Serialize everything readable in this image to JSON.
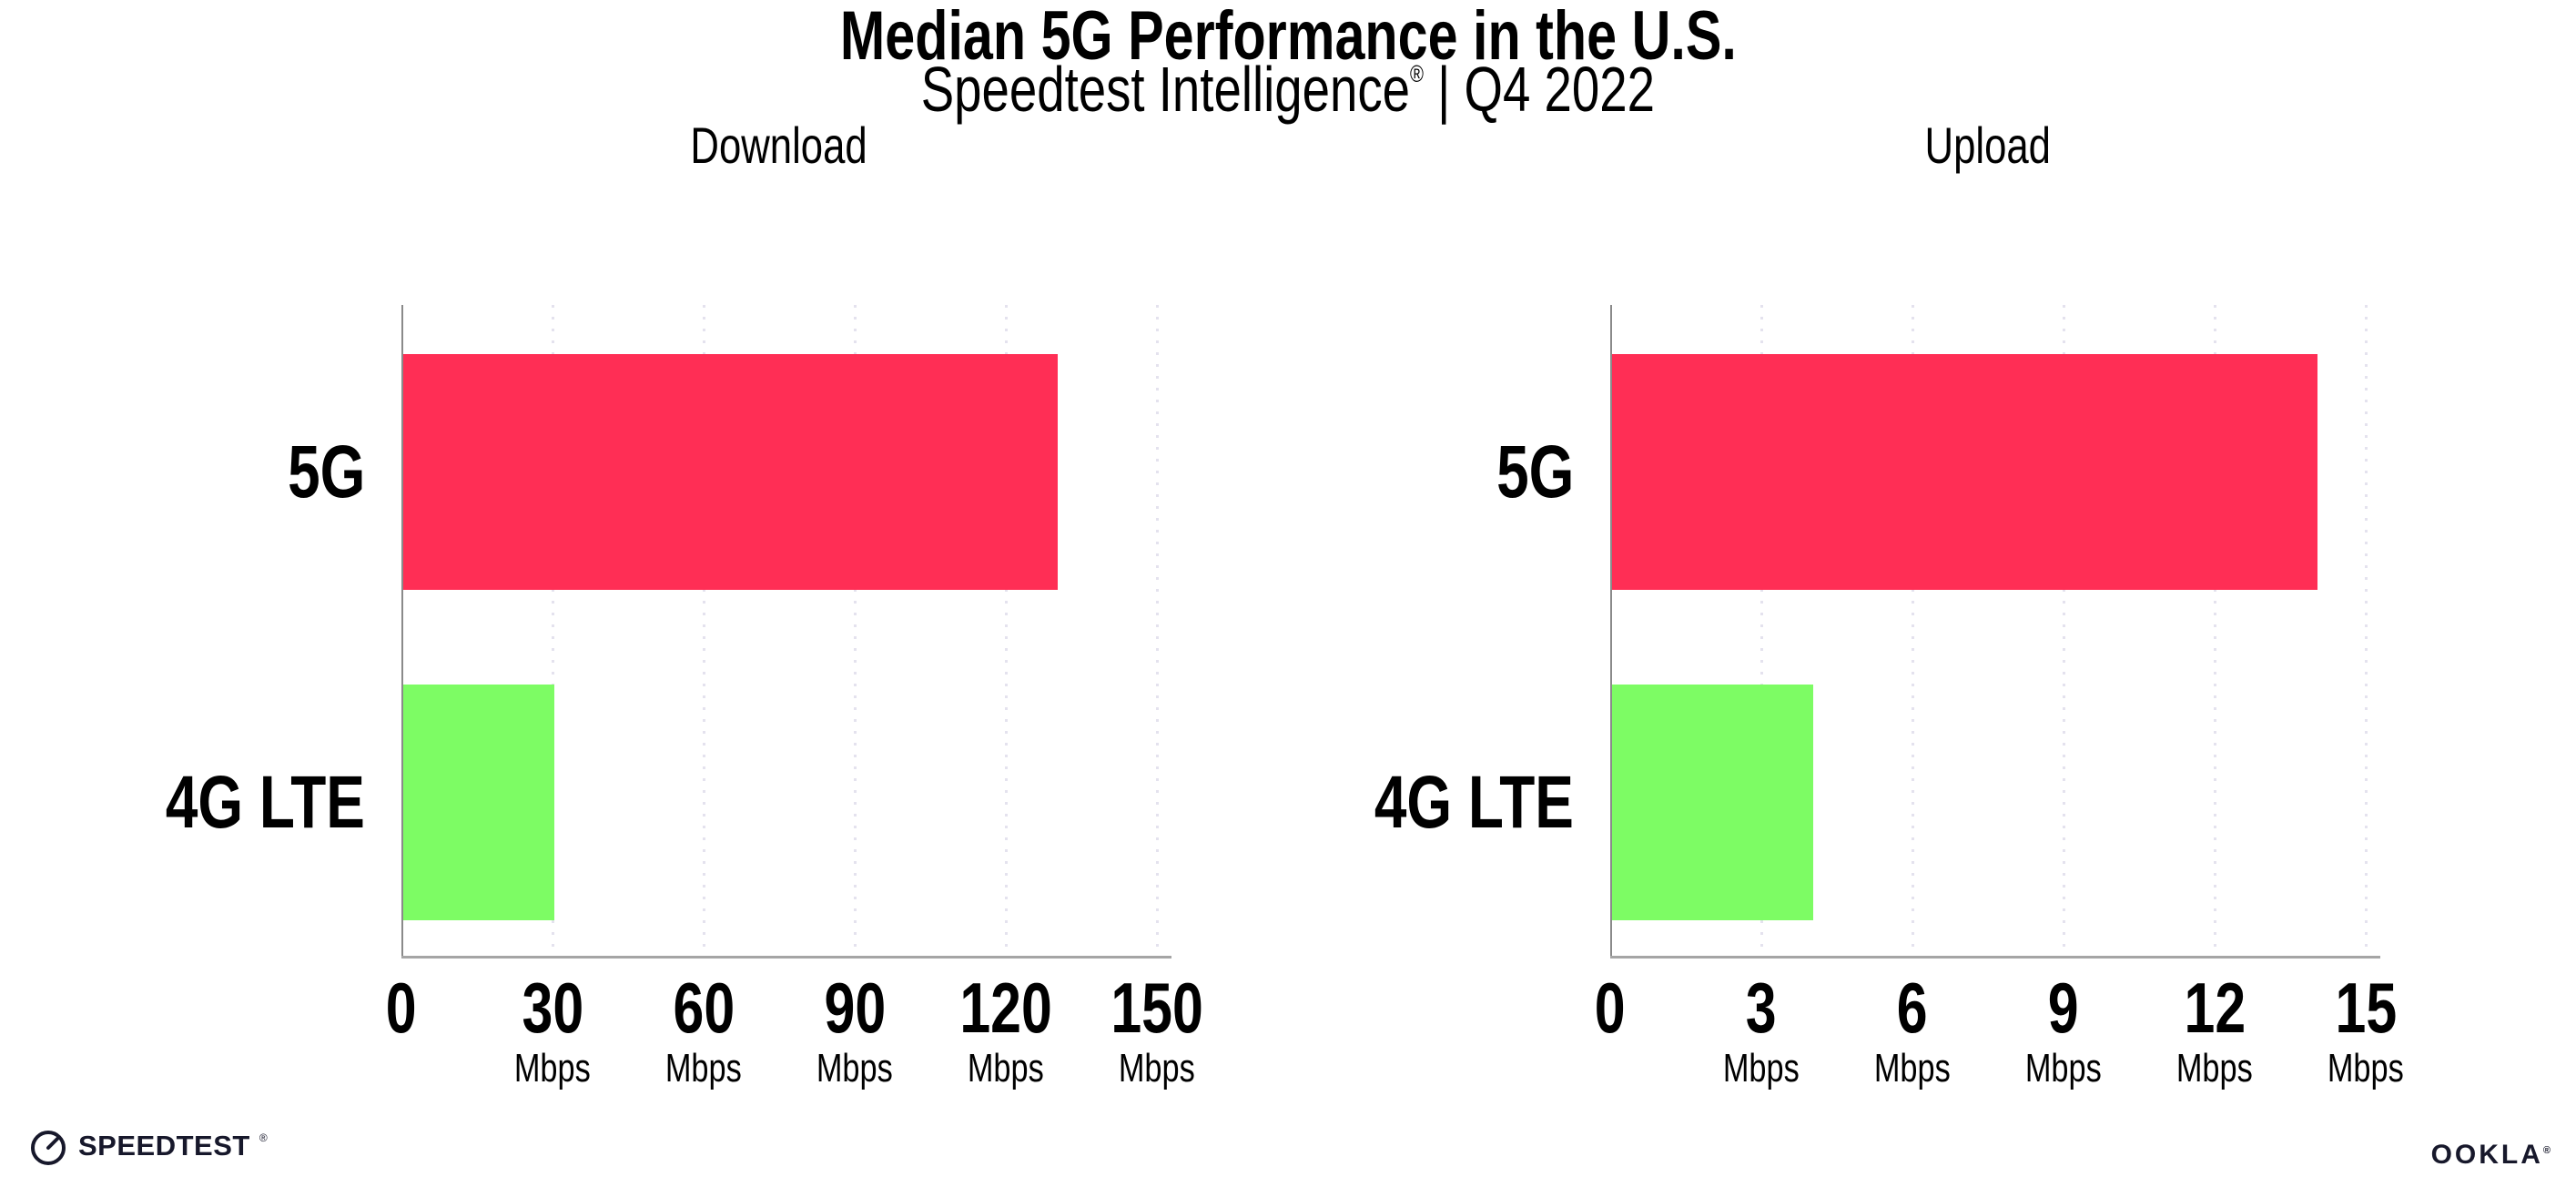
{
  "page": {
    "title": "Median 5G Performance in the U.S.",
    "subtitle": {
      "brand": "Speedtest Intelligence",
      "registered_mark": "®",
      "divider": "|",
      "period": "Q4 2022"
    }
  },
  "footer": {
    "speedtest_wordmark": "SPEEDTEST",
    "speedtest_mark": "®",
    "ookla_wordmark": "OOKLA",
    "ookla_mark": "®"
  },
  "colors": {
    "bar_5g": "#ff2e55",
    "bar_4g_lte": "#7dfc64",
    "x_axis_line": "#a5a5a5",
    "y_axis_line": "#8a8a8a",
    "gridline_dots": "#e4e2ee",
    "text": "#000000"
  },
  "chart_data": [
    {
      "type": "bar",
      "orientation": "horizontal",
      "title": "Download",
      "categories": [
        "5G",
        "4G LTE"
      ],
      "values": [
        130,
        30
      ],
      "unit": "Mbps",
      "xlim": [
        0,
        150
      ],
      "xticks": [
        0,
        30,
        60,
        90,
        120,
        150
      ],
      "bar_colors": [
        "#ff2e55",
        "#7dfc64"
      ],
      "grid": "dotted-vertical-at-ticks",
      "legend": "none"
    },
    {
      "type": "bar",
      "orientation": "horizontal",
      "title": "Upload",
      "categories": [
        "5G",
        "4G LTE"
      ],
      "values": [
        14,
        4
      ],
      "unit": "Mbps",
      "xlim": [
        0,
        15
      ],
      "xticks": [
        0,
        3,
        6,
        9,
        12,
        15
      ],
      "bar_colors": [
        "#ff2e55",
        "#7dfc64"
      ],
      "grid": "dotted-vertical-at-ticks",
      "legend": "none"
    }
  ]
}
